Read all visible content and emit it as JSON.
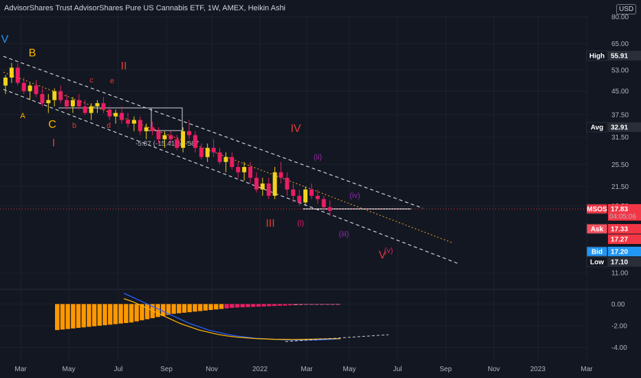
{
  "header": {
    "title": "AdvisorShares Trust AdvisorShares Pure US Cannabis ETF, 1W, AMEX, Heikin Ashi",
    "currency": "USD"
  },
  "colors": {
    "background": "#131722",
    "bull": "#f2d21b",
    "bear": "#e91e63",
    "up_orange": "#ff9800",
    "macd_line": "#2962ff",
    "signal_line": "#ffb300",
    "channel": "#d1d4dc"
  },
  "price_labels": [
    {
      "name": "High",
      "value": "55.91",
      "bg": "#2a2e39",
      "label_bg": "#131722"
    },
    {
      "name": "Avg",
      "value": "32.91",
      "bg": "#2a2e39",
      "label_bg": "#131722"
    },
    {
      "name": "MSOS",
      "value": "17.83",
      "sub": "04:05:06",
      "bg": "#f23645",
      "label_bg": "#f23645"
    },
    {
      "name": "Ask",
      "value": "17.33",
      "bg": "#f23645",
      "label_bg": "#f7525f"
    },
    {
      "name": "",
      "value": "17.27",
      "bg": "#f23645",
      "label_bg": ""
    },
    {
      "name": "Bid",
      "value": "17.20",
      "bg": "#2196f3",
      "label_bg": "#2196f3"
    },
    {
      "name": "Low",
      "value": "17.10",
      "bg": "#2a2e39",
      "label_bg": "#131722"
    }
  ],
  "measure_label": "-5.87 (-15.41%) -587",
  "wave_labels": {
    "major": [
      "V",
      "B",
      "II",
      "C",
      "I",
      "IV",
      "III",
      "V"
    ],
    "minor": [
      "A",
      "c",
      "e",
      "b",
      "d",
      "(ii)",
      "(i)",
      "(iii)",
      "(iv)",
      "(v)"
    ]
  },
  "chart_data": {
    "type": "candlestick",
    "price_axis": {
      "scale": "log",
      "ticks": [
        "80.00",
        "65.00",
        "53.00",
        "45.00",
        "37.50",
        "31.50",
        "25.50",
        "21.50",
        "18.50",
        "11.00"
      ],
      "tick_values": [
        80,
        65,
        53,
        45,
        37.5,
        31.5,
        25.5,
        21.5,
        18.5,
        11
      ]
    },
    "time_axis": {
      "ticks": [
        "Mar",
        "May",
        "Jul",
        "Sep",
        "Nov",
        "2022",
        "Mar",
        "May",
        "Jul",
        "Sep",
        "Nov",
        "2023",
        "Mar"
      ]
    },
    "candles": [
      {
        "o": 47,
        "h": 51,
        "l": 44,
        "c": 50
      },
      {
        "o": 50,
        "h": 56,
        "l": 48,
        "c": 54
      },
      {
        "o": 54,
        "h": 55.9,
        "l": 47,
        "c": 48
      },
      {
        "o": 48,
        "h": 50,
        "l": 44,
        "c": 45
      },
      {
        "o": 45,
        "h": 48,
        "l": 42,
        "c": 47
      },
      {
        "o": 47,
        "h": 49,
        "l": 43,
        "c": 44
      },
      {
        "o": 44,
        "h": 46,
        "l": 40,
        "c": 41
      },
      {
        "o": 41,
        "h": 44,
        "l": 38,
        "c": 42
      },
      {
        "o": 42,
        "h": 46,
        "l": 40,
        "c": 45
      },
      {
        "o": 45,
        "h": 47,
        "l": 41,
        "c": 42
      },
      {
        "o": 42,
        "h": 44,
        "l": 39,
        "c": 40
      },
      {
        "o": 40,
        "h": 43,
        "l": 38,
        "c": 42
      },
      {
        "o": 42,
        "h": 44,
        "l": 39,
        "c": 40
      },
      {
        "o": 40,
        "h": 42,
        "l": 37.5,
        "c": 38
      },
      {
        "o": 38,
        "h": 41,
        "l": 36,
        "c": 40
      },
      {
        "o": 40,
        "h": 42,
        "l": 38,
        "c": 41
      },
      {
        "o": 41,
        "h": 43,
        "l": 38,
        "c": 39
      },
      {
        "o": 39,
        "h": 40,
        "l": 36,
        "c": 37
      },
      {
        "o": 37,
        "h": 39,
        "l": 35,
        "c": 38
      },
      {
        "o": 38,
        "h": 40,
        "l": 35,
        "c": 36
      },
      {
        "o": 36,
        "h": 38,
        "l": 34,
        "c": 35
      },
      {
        "o": 35,
        "h": 37,
        "l": 33,
        "c": 36
      },
      {
        "o": 36,
        "h": 37,
        "l": 32,
        "c": 33
      },
      {
        "o": 33,
        "h": 35,
        "l": 31,
        "c": 34
      },
      {
        "o": 34,
        "h": 35.5,
        "l": 32,
        "c": 33
      },
      {
        "o": 33,
        "h": 34,
        "l": 30,
        "c": 31
      },
      {
        "o": 31,
        "h": 33,
        "l": 29,
        "c": 32
      },
      {
        "o": 32,
        "h": 33,
        "l": 30,
        "c": 31
      },
      {
        "o": 31,
        "h": 32,
        "l": 28.5,
        "c": 29
      },
      {
        "o": 29,
        "h": 34,
        "l": 28,
        "c": 33
      },
      {
        "o": 33,
        "h": 36,
        "l": 31,
        "c": 32
      },
      {
        "o": 32,
        "h": 33,
        "l": 28,
        "c": 29
      },
      {
        "o": 29,
        "h": 30,
        "l": 26.5,
        "c": 27
      },
      {
        "o": 27,
        "h": 30,
        "l": 26,
        "c": 29
      },
      {
        "o": 29,
        "h": 31,
        "l": 27,
        "c": 28
      },
      {
        "o": 28,
        "h": 29,
        "l": 25.5,
        "c": 26
      },
      {
        "o": 26,
        "h": 28,
        "l": 24,
        "c": 27
      },
      {
        "o": 27,
        "h": 28,
        "l": 24.5,
        "c": 25
      },
      {
        "o": 25,
        "h": 26,
        "l": 23,
        "c": 24
      },
      {
        "o": 24,
        "h": 26,
        "l": 22.5,
        "c": 25
      },
      {
        "o": 25,
        "h": 26,
        "l": 22,
        "c": 23
      },
      {
        "o": 23,
        "h": 24,
        "l": 20.5,
        "c": 21
      },
      {
        "o": 21,
        "h": 23,
        "l": 20,
        "c": 22
      },
      {
        "o": 22,
        "h": 23,
        "l": 19.5,
        "c": 20
      },
      {
        "o": 20,
        "h": 25,
        "l": 19.5,
        "c": 24
      },
      {
        "o": 24,
        "h": 26,
        "l": 22,
        "c": 23
      },
      {
        "o": 23,
        "h": 24,
        "l": 20,
        "c": 21
      },
      {
        "o": 21,
        "h": 22,
        "l": 19,
        "c": 20
      },
      {
        "o": 20,
        "h": 21,
        "l": 18.5,
        "c": 19
      },
      {
        "o": 19,
        "h": 21.5,
        "l": 18.5,
        "c": 21
      },
      {
        "o": 21,
        "h": 22,
        "l": 19.5,
        "c": 20
      },
      {
        "o": 20,
        "h": 21,
        "l": 18.8,
        "c": 19.5
      },
      {
        "o": 19.5,
        "h": 20,
        "l": 17.8,
        "c": 18.3
      },
      {
        "o": 18.3,
        "h": 19.3,
        "l": 17.1,
        "c": 17.8
      }
    ],
    "macd_histogram": [
      -2.4,
      -2.35,
      -2.3,
      -2.25,
      -2.2,
      -2.15,
      -2.1,
      -2.05,
      -2.0,
      -1.95,
      -1.9,
      -1.85,
      -1.8,
      -1.75,
      -1.7,
      -1.6,
      -1.5,
      -1.4,
      -1.3,
      -1.2,
      -1.1,
      -1.0,
      -0.9,
      -0.85,
      -0.8,
      -0.75,
      -0.7,
      -0.65,
      -0.6,
      -0.55,
      -0.5,
      -0.45,
      -0.4,
      -0.35,
      -0.32,
      -0.3,
      -0.28,
      -0.26,
      -0.24,
      -0.22,
      -0.2,
      -0.18,
      -0.16,
      -0.14,
      -0.12,
      -0.1,
      -0.08,
      -0.06,
      -0.05,
      -0.04,
      -0.03,
      -0.02,
      -0.01,
      0.0
    ],
    "macd_line": [
      1.0,
      0.6,
      0.2,
      -0.2,
      -0.6,
      -1.0,
      -1.4,
      -1.8,
      -2.1,
      -2.4,
      -2.6,
      -2.8,
      -2.95,
      -3.05,
      -3.15,
      -3.2,
      -3.25,
      -3.3,
      -3.32,
      -3.33,
      -3.32,
      -3.3,
      -3.25,
      -3.2
    ],
    "signal_line": [
      0.5,
      0.2,
      -0.2,
      -0.6,
      -1.0,
      -1.4,
      -1.8,
      -2.1,
      -2.4,
      -2.6,
      -2.8,
      -2.95,
      -3.05,
      -3.12,
      -3.18,
      -3.22,
      -3.25,
      -3.26,
      -3.27,
      -3.26,
      -3.24,
      -3.22,
      -3.2,
      -3.18
    ],
    "macd_axis": {
      "ticks": [
        "0.00",
        "-2.00",
        "-4.00"
      ],
      "tick_values": [
        0,
        -2,
        -4
      ]
    }
  }
}
